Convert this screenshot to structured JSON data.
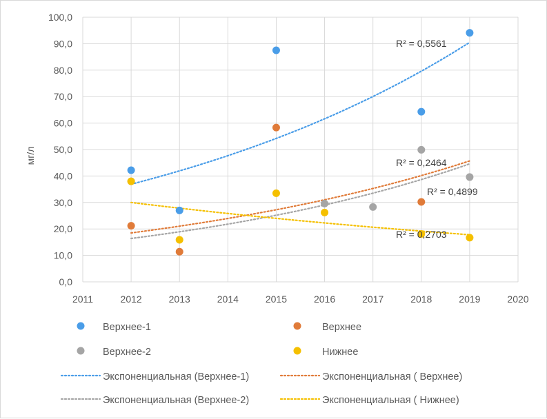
{
  "chart_data": {
    "type": "scatter",
    "title": "",
    "xlabel": "",
    "ylabel": "мг/л",
    "xlim": [
      2011,
      2020
    ],
    "ylim": [
      0,
      100
    ],
    "x_ticks": [
      "2011",
      "2012",
      "2013",
      "2014",
      "2015",
      "2016",
      "2017",
      "2018",
      "2019",
      "2020"
    ],
    "y_ticks": [
      "0,0",
      "10,0",
      "20,0",
      "30,0",
      "40,0",
      "50,0",
      "60,0",
      "70,0",
      "80,0",
      "90,0",
      "100,0"
    ],
    "grid": "vertical-and-horizontal",
    "legend_position": "bottom",
    "series": [
      {
        "name": "Верхнее-1",
        "color": "#4a9de8",
        "x": [
          2012,
          2013,
          2015,
          2018,
          2019
        ],
        "y": [
          42.2,
          27.0,
          87.5,
          64.3,
          94.1
        ],
        "trend": {
          "name": "Экспоненциальная (Верхнее-1)",
          "type": "exponential",
          "x_range": [
            2012,
            2019
          ],
          "y_start": 36.9,
          "y_end": 90.5,
          "r2_label": "R² = 0,5561"
        }
      },
      {
        "name": "Верхнее",
        "color": "#e07b39",
        "x": [
          2012,
          2013,
          2015,
          2018
        ],
        "y": [
          21.2,
          11.4,
          58.3,
          30.2
        ],
        "trend": {
          "name": "Экспоненциальная ( Верхнее)",
          "type": "exponential",
          "x_range": [
            2012,
            2019
          ],
          "y_start": 18.5,
          "y_end": 45.7,
          "r2_label": "R² = 0,2464"
        }
      },
      {
        "name": "Верхнее-2",
        "color": "#a5a5a5",
        "x": [
          2012,
          2016,
          2017,
          2018,
          2019
        ],
        "y": [
          38.0,
          29.6,
          28.3,
          49.9,
          39.6
        ],
        "trend": {
          "name": "Экспоненциальная (Верхнее-2)",
          "type": "exponential",
          "x_range": [
            2012,
            2019
          ],
          "y_start": 16.4,
          "y_end": 44.6,
          "r2_label": "R² = 0,4899"
        }
      },
      {
        "name": "Нижнее",
        "color": "#f5c000",
        "x": [
          2012,
          2013,
          2015,
          2016,
          2018,
          2019
        ],
        "y": [
          38.0,
          15.9,
          33.5,
          26.2,
          18.1,
          16.7
        ],
        "trend": {
          "name": "Экспоненциальная ( Нижнее)",
          "type": "exponential",
          "x_range": [
            2012,
            2019
          ],
          "y_start": 30.0,
          "y_end": 17.8,
          "r2_label": "R² = 0,2703"
        }
      }
    ]
  }
}
